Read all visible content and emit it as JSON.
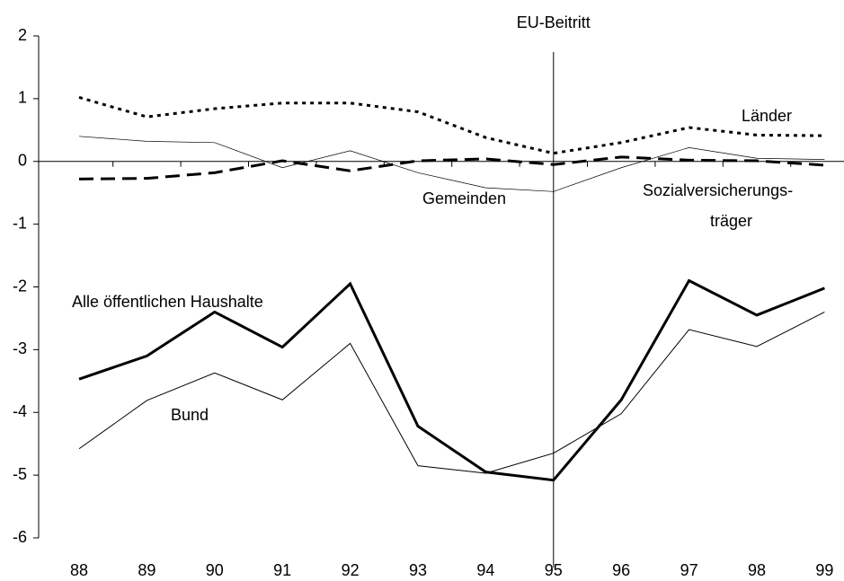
{
  "chart_data": {
    "type": "line",
    "categories": [
      "88",
      "89",
      "90",
      "91",
      "92",
      "93",
      "94",
      "95",
      "96",
      "97",
      "98",
      "99"
    ],
    "series": [
      {
        "name": "Alle öffentlichen Haushalte",
        "color": "#000000",
        "line_style": "solid",
        "line_width": 3,
        "values": [
          -3.47,
          -3.1,
          -2.4,
          -2.96,
          -1.95,
          -4.22,
          -4.95,
          -5.08,
          -3.8,
          -1.9,
          -2.45,
          -2.02
        ]
      },
      {
        "name": "Bund",
        "color": "#000000",
        "line_style": "solid",
        "line_width": 1,
        "values": [
          -4.58,
          -3.81,
          -3.37,
          -3.8,
          -2.9,
          -4.85,
          -4.97,
          -4.65,
          -4.02,
          -2.68,
          -2.95,
          -2.4
        ]
      },
      {
        "name": "Länder",
        "color": "#000000",
        "line_style": "dotted",
        "line_width": 3,
        "values": [
          1.02,
          0.71,
          0.84,
          0.93,
          0.93,
          0.79,
          0.38,
          0.13,
          0.3,
          0.54,
          0.42,
          0.41
        ]
      },
      {
        "name": "Gemeinden",
        "color": "#000000",
        "line_style": "solid",
        "line_width": 0.7,
        "values": [
          0.4,
          0.32,
          0.3,
          -0.1,
          0.17,
          -0.18,
          -0.42,
          -0.48,
          -0.1,
          0.22,
          0.05,
          0.03
        ]
      },
      {
        "name": "Sozialversicherungs-\nträger",
        "color": "#000000",
        "line_style": "dashed",
        "line_width": 3,
        "values": [
          -0.28,
          -0.27,
          -0.18,
          0.01,
          -0.15,
          0.01,
          0.04,
          -0.05,
          0.07,
          0.02,
          0.01,
          -0.06
        ]
      }
    ],
    "annotations": [
      {
        "text": "EU-Beitritt",
        "x": "95"
      }
    ],
    "ylim": [
      -6,
      2
    ],
    "yticks": [
      -6,
      -5,
      -4,
      -3,
      -2,
      -1,
      0,
      1,
      2
    ],
    "grid": false
  }
}
